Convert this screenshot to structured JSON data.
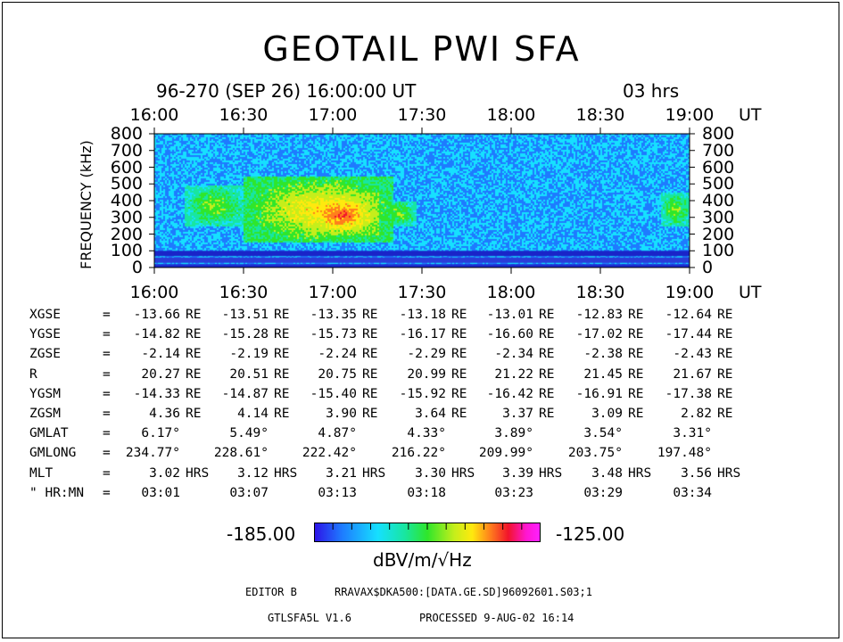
{
  "title": "GEOTAIL PWI SFA",
  "header": {
    "date_line": "96-270 (SEP 26) 16:00:00 UT",
    "duration": "03 hrs"
  },
  "colors": {
    "spectrogram_background": "#1a3dd6",
    "frame": "#000000"
  },
  "chart_data": {
    "type": "heatmap",
    "title": "GEOTAIL PWI SFA",
    "xlabel": "UT",
    "ylabel": "FREQUENCY (kHz)",
    "x_ticks": [
      "16:00",
      "16:30",
      "17:00",
      "17:30",
      "18:00",
      "18:30",
      "19:00"
    ],
    "x_unit": "UT",
    "y_ticks": [
      "800",
      "700",
      "600",
      "500",
      "400",
      "300",
      "200",
      "100",
      "0"
    ],
    "xlim": [
      "16:00",
      "19:00"
    ],
    "ylim": [
      0,
      800
    ],
    "colorbar": {
      "min": "-185.00",
      "max": "-125.00",
      "unit": "dBV/m/√Hz"
    },
    "colormap": [
      "#2d14e8",
      "#1e7bff",
      "#16e0ff",
      "#18e6a0",
      "#2fe62b",
      "#c5ee1b",
      "#ffe90e",
      "#ff7f1c",
      "#f2142c",
      "#ff16d0"
    ],
    "enhancements": [
      {
        "t0": "16:10",
        "t1": "16:30",
        "f0": 250,
        "f1": 500,
        "level": 0.45
      },
      {
        "t0": "16:30",
        "t1": "17:20",
        "f0": 150,
        "f1": 550,
        "level": 0.6
      },
      {
        "t0": "16:50",
        "t1": "17:15",
        "f0": 200,
        "f1": 450,
        "level": 0.75
      },
      {
        "t0": "17:15",
        "t1": "17:28",
        "f0": 250,
        "f1": 400,
        "level": 0.45
      },
      {
        "t0": "18:50",
        "t1": "19:00",
        "f0": 250,
        "f1": 450,
        "level": 0.45
      }
    ]
  },
  "ephemeris": {
    "rows": [
      {
        "label": "XGSE",
        "values": [
          "-13.66",
          "-13.51",
          "-13.35",
          "-13.18",
          "-13.01",
          "-12.83",
          "-12.64"
        ],
        "unit": "RE"
      },
      {
        "label": "YGSE",
        "values": [
          "-14.82",
          "-15.28",
          "-15.73",
          "-16.17",
          "-16.60",
          "-17.02",
          "-17.44"
        ],
        "unit": "RE"
      },
      {
        "label": "ZGSE",
        "values": [
          "-2.14",
          "-2.19",
          "-2.24",
          "-2.29",
          "-2.34",
          "-2.38",
          "-2.43"
        ],
        "unit": "RE"
      },
      {
        "label": "R",
        "values": [
          "20.27",
          "20.51",
          "20.75",
          "20.99",
          "21.22",
          "21.45",
          "21.67"
        ],
        "unit": "RE"
      },
      {
        "label": "YGSM",
        "values": [
          "-14.33",
          "-14.87",
          "-15.40",
          "-15.92",
          "-16.42",
          "-16.91",
          "-17.38"
        ],
        "unit": "RE"
      },
      {
        "label": "ZGSM",
        "values": [
          "4.36",
          "4.14",
          "3.90",
          "3.64",
          "3.37",
          "3.09",
          "2.82"
        ],
        "unit": "RE"
      },
      {
        "label": "GMLAT",
        "values": [
          "6.17°",
          "5.49°",
          "4.87°",
          "4.33°",
          "3.89°",
          "3.54°",
          "3.31°"
        ],
        "unit": ""
      },
      {
        "label": "GMLONG",
        "values": [
          "234.77°",
          "228.61°",
          "222.42°",
          "216.22°",
          "209.99°",
          "203.75°",
          "197.48°"
        ],
        "unit": ""
      },
      {
        "label": "MLT",
        "values": [
          "3.02",
          "3.12",
          "3.21",
          "3.30",
          "3.39",
          "3.48",
          "3.56"
        ],
        "unit": "HRS"
      },
      {
        "label": "\" HR:MN",
        "values": [
          "03:01",
          "03:07",
          "03:13",
          "03:18",
          "03:23",
          "03:29",
          "03:34"
        ],
        "unit": ""
      }
    ]
  },
  "footer": {
    "editor_label": "EDITOR B",
    "data_file": "RRAVAX$DKA500:[DATA.GE.SD]96092601.S03;1",
    "program": "GTLSFA5L V1.6",
    "processed": "PROCESSED 9-AUG-02 16:14"
  }
}
